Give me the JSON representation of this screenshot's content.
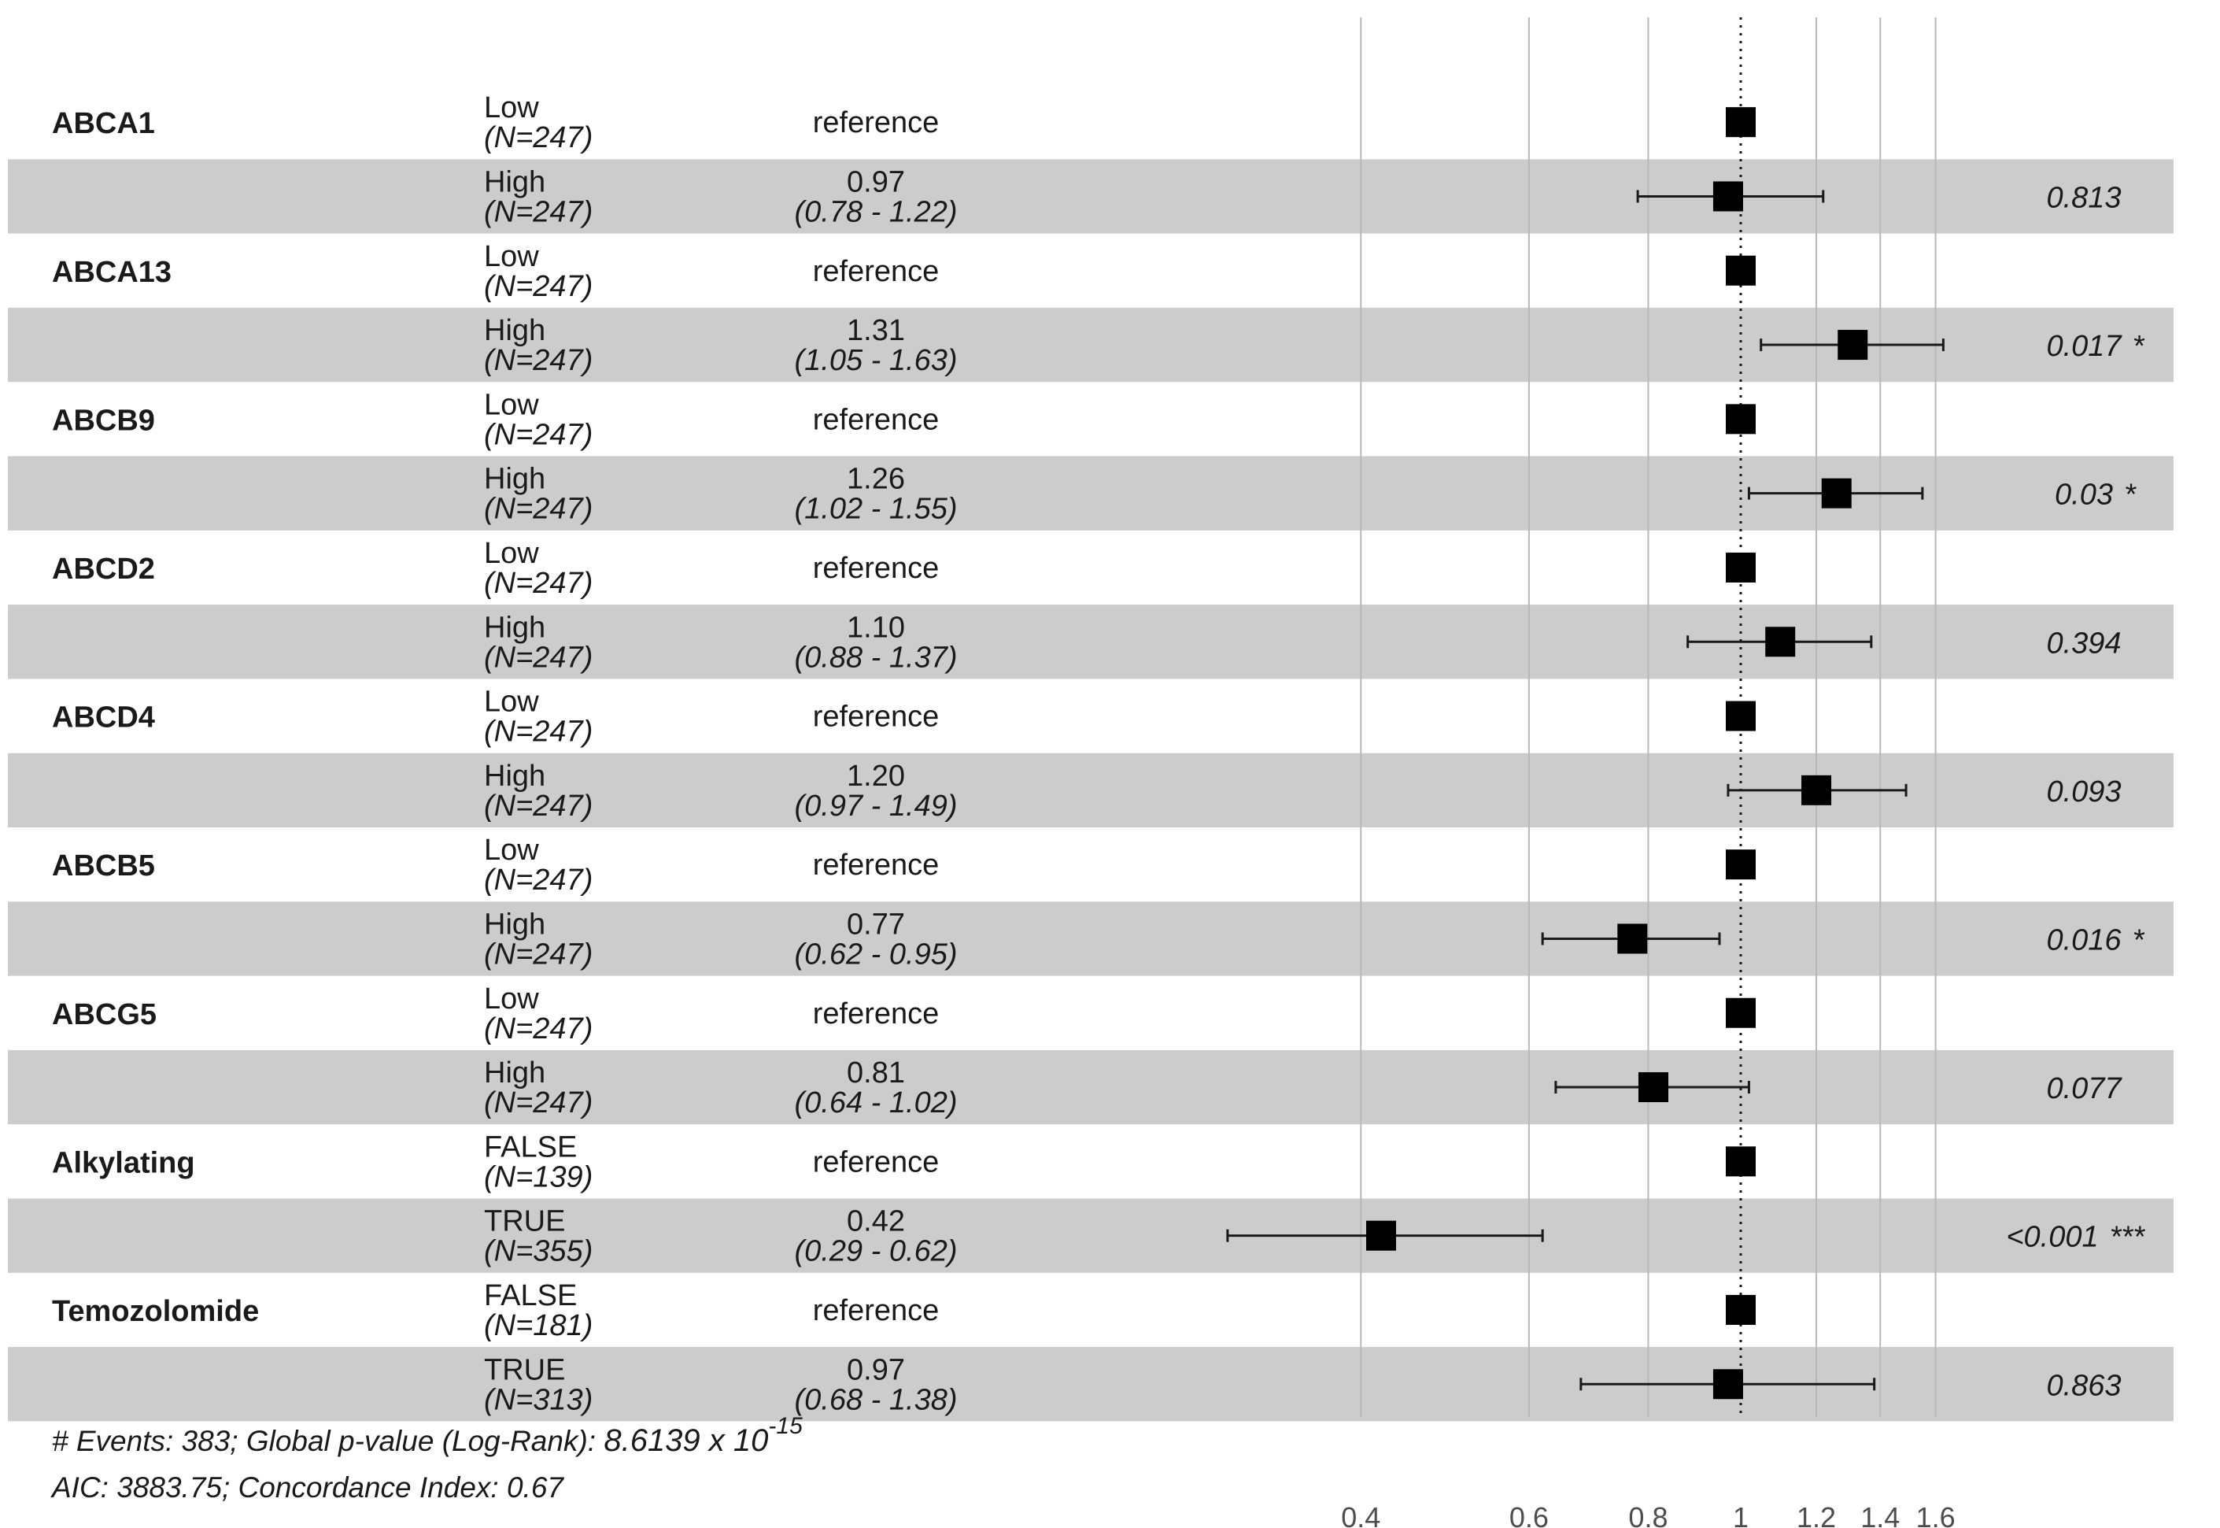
{
  "chart_data": {
    "type": "forest",
    "x_scale": "log",
    "xlim": [
      0.3,
      1.9
    ],
    "x_ticks": [
      {
        "value": 0.4,
        "label": "0.4"
      },
      {
        "value": 0.6,
        "label": "0.6"
      },
      {
        "value": 0.8,
        "label": "0.8"
      },
      {
        "value": 1.0,
        "label": "1"
      },
      {
        "value": 1.2,
        "label": "1.2"
      },
      {
        "value": 1.4,
        "label": "1.4"
      },
      {
        "value": 1.6,
        "label": "1.6"
      }
    ],
    "reference_line": 1,
    "rows": [
      {
        "variable": "ABCA1",
        "level": "Low",
        "n": "(N=247)",
        "hr_text": "reference",
        "ci_text": "",
        "p": "",
        "hr": 1.0,
        "lo": null,
        "hi": null,
        "shaded": false
      },
      {
        "variable": "",
        "level": "High",
        "n": "(N=247)",
        "hr_text": "0.97",
        "ci_text": "(0.78 - 1.22)",
        "p": "0.813",
        "hr": 0.97,
        "lo": 0.78,
        "hi": 1.22,
        "shaded": true
      },
      {
        "variable": "ABCA13",
        "level": "Low",
        "n": "(N=247)",
        "hr_text": "reference",
        "ci_text": "",
        "p": "",
        "hr": 1.0,
        "lo": null,
        "hi": null,
        "shaded": false
      },
      {
        "variable": "",
        "level": "High",
        "n": "(N=247)",
        "hr_text": "1.31",
        "ci_text": "(1.05 - 1.63)",
        "p": "0.017 *",
        "hr": 1.31,
        "lo": 1.05,
        "hi": 1.63,
        "shaded": true
      },
      {
        "variable": "ABCB9",
        "level": "Low",
        "n": "(N=247)",
        "hr_text": "reference",
        "ci_text": "",
        "p": "",
        "hr": 1.0,
        "lo": null,
        "hi": null,
        "shaded": false
      },
      {
        "variable": "",
        "level": "High",
        "n": "(N=247)",
        "hr_text": "1.26",
        "ci_text": "(1.02 - 1.55)",
        "p": "0.03 *",
        "hr": 1.26,
        "lo": 1.02,
        "hi": 1.55,
        "shaded": true
      },
      {
        "variable": "ABCD2",
        "level": "Low",
        "n": "(N=247)",
        "hr_text": "reference",
        "ci_text": "",
        "p": "",
        "hr": 1.0,
        "lo": null,
        "hi": null,
        "shaded": false
      },
      {
        "variable": "",
        "level": "High",
        "n": "(N=247)",
        "hr_text": "1.10",
        "ci_text": "(0.88 - 1.37)",
        "p": "0.394",
        "hr": 1.1,
        "lo": 0.88,
        "hi": 1.37,
        "shaded": true
      },
      {
        "variable": "ABCD4",
        "level": "Low",
        "n": "(N=247)",
        "hr_text": "reference",
        "ci_text": "",
        "p": "",
        "hr": 1.0,
        "lo": null,
        "hi": null,
        "shaded": false
      },
      {
        "variable": "",
        "level": "High",
        "n": "(N=247)",
        "hr_text": "1.20",
        "ci_text": "(0.97 - 1.49)",
        "p": "0.093",
        "hr": 1.2,
        "lo": 0.97,
        "hi": 1.49,
        "shaded": true
      },
      {
        "variable": "ABCB5",
        "level": "Low",
        "n": "(N=247)",
        "hr_text": "reference",
        "ci_text": "",
        "p": "",
        "hr": 1.0,
        "lo": null,
        "hi": null,
        "shaded": false
      },
      {
        "variable": "",
        "level": "High",
        "n": "(N=247)",
        "hr_text": "0.77",
        "ci_text": "(0.62 - 0.95)",
        "p": "0.016 *",
        "hr": 0.77,
        "lo": 0.62,
        "hi": 0.95,
        "shaded": true
      },
      {
        "variable": "ABCG5",
        "level": "Low",
        "n": "(N=247)",
        "hr_text": "reference",
        "ci_text": "",
        "p": "",
        "hr": 1.0,
        "lo": null,
        "hi": null,
        "shaded": false
      },
      {
        "variable": "",
        "level": "High",
        "n": "(N=247)",
        "hr_text": "0.81",
        "ci_text": "(0.64 - 1.02)",
        "p": "0.077",
        "hr": 0.81,
        "lo": 0.64,
        "hi": 1.02,
        "shaded": true
      },
      {
        "variable": "Alkylating",
        "level": "FALSE",
        "n": "(N=139)",
        "hr_text": "reference",
        "ci_text": "",
        "p": "",
        "hr": 1.0,
        "lo": null,
        "hi": null,
        "shaded": false
      },
      {
        "variable": "",
        "level": "TRUE",
        "n": "(N=355)",
        "hr_text": "0.42",
        "ci_text": "(0.29 - 0.62)",
        "p": "<0.001 ***",
        "hr": 0.42,
        "lo": 0.29,
        "hi": 0.62,
        "shaded": true
      },
      {
        "variable": "Temozolomide",
        "level": "FALSE",
        "n": "(N=181)",
        "hr_text": "reference",
        "ci_text": "",
        "p": "",
        "hr": 1.0,
        "lo": null,
        "hi": null,
        "shaded": false
      },
      {
        "variable": "",
        "level": "TRUE",
        "n": "(N=313)",
        "hr_text": "0.97",
        "ci_text": "(0.68 - 1.38)",
        "p": "0.863",
        "hr": 0.97,
        "lo": 0.68,
        "hi": 1.38,
        "shaded": true
      }
    ],
    "footer": {
      "line1_prefix": "# Events: 383; Global p-value (Log-Rank): ",
      "global_p_mantissa": "8.6139 x 10",
      "global_p_exponent": "-15",
      "line2": "AIC: 3883.75; Concordance Index: 0.67"
    }
  }
}
